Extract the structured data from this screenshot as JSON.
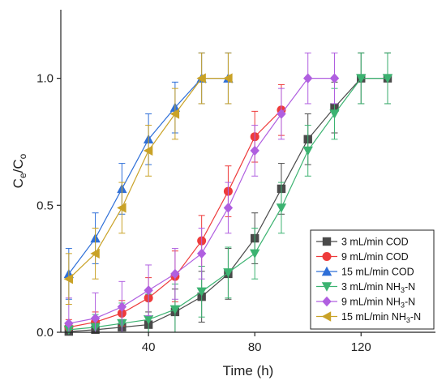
{
  "chart_data": {
    "type": "line",
    "title": "",
    "xlabel": "Time (h)",
    "ylabel": {
      "main": "C",
      "sub1": "e",
      "slash": "/C",
      "sub2": "o"
    },
    "xlim": [
      7,
      148
    ],
    "ylim": [
      0,
      1.27
    ],
    "xticks": [
      40,
      80,
      120
    ],
    "xtick_labels": [
      "40",
      "80",
      "120"
    ],
    "yticks": [
      0,
      0.5,
      1.0
    ],
    "ytick_labels": [
      "0.0",
      "0.5",
      "1.0"
    ],
    "grid": false,
    "legend_position": "bottom-right",
    "series": [
      {
        "name": {
          "text": "3 mL/min COD",
          "sub": "",
          "suffix": ""
        },
        "color": "#4a4a4a",
        "marker": "square",
        "x": [
          10,
          20,
          30,
          40,
          50,
          60,
          70,
          80,
          90,
          100,
          110,
          120,
          130
        ],
        "y": [
          0.003,
          0.01,
          0.02,
          0.03,
          0.08,
          0.14,
          0.23,
          0.37,
          0.565,
          0.76,
          0.885,
          1.0,
          1.0
        ],
        "err": [
          0.02,
          0.02,
          0.03,
          0.05,
          0.09,
          0.1,
          0.1,
          0.1,
          0.1,
          0.1,
          0.1,
          0.1,
          0.1
        ]
      },
      {
        "name": {
          "text": "9 mL/min COD",
          "sub": "",
          "suffix": ""
        },
        "color": "#ee3b3b",
        "marker": "circle",
        "x": [
          10,
          20,
          30,
          40,
          50,
          60,
          70,
          80,
          90
        ],
        "y": [
          0.02,
          0.04,
          0.075,
          0.135,
          0.22,
          0.36,
          0.555,
          0.77,
          0.875
        ],
        "err": [
          0.03,
          0.04,
          0.05,
          0.08,
          0.1,
          0.1,
          0.1,
          0.1,
          0.1
        ]
      },
      {
        "name": {
          "text": "15 mL/min COD",
          "sub": "",
          "suffix": ""
        },
        "color": "#2e6fd8",
        "marker": "triangle-up",
        "x": [
          10,
          20,
          30,
          40,
          50,
          60,
          70
        ],
        "y": [
          0.23,
          0.37,
          0.565,
          0.76,
          0.885,
          1.0,
          1.0
        ],
        "err": [
          0.1,
          0.1,
          0.1,
          0.1,
          0.1,
          0.1,
          0.1
        ]
      },
      {
        "name": {
          "text": "3 mL/min NH",
          "sub": "3",
          "suffix": "-N"
        },
        "color": "#3cb371",
        "marker": "triangle-down",
        "x": [
          10,
          20,
          30,
          40,
          50,
          60,
          70,
          80,
          90,
          100,
          110,
          120,
          130
        ],
        "y": [
          0.01,
          0.02,
          0.035,
          0.05,
          0.09,
          0.16,
          0.235,
          0.31,
          0.49,
          0.715,
          0.86,
          1.0,
          1.0
        ],
        "err": [
          0.03,
          0.05,
          0.08,
          0.1,
          0.1,
          0.1,
          0.1,
          0.1,
          0.1,
          0.1,
          0.1,
          0.1,
          0.1
        ]
      },
      {
        "name": {
          "text": "9 mL/min NH",
          "sub": "3",
          "suffix": "-N"
        },
        "color": "#b05fe0",
        "marker": "diamond",
        "x": [
          10,
          20,
          30,
          40,
          50,
          60,
          70,
          80,
          90,
          100,
          110
        ],
        "y": [
          0.035,
          0.055,
          0.1,
          0.165,
          0.23,
          0.31,
          0.49,
          0.715,
          0.86,
          1.0,
          1.0
        ],
        "err": [
          0.1,
          0.1,
          0.1,
          0.1,
          0.1,
          0.1,
          0.1,
          0.1,
          0.1,
          0.1,
          0.1
        ]
      },
      {
        "name": {
          "text": "15 mL/min NH",
          "sub": "3",
          "suffix": "-N"
        },
        "color": "#c9a227",
        "marker": "triangle-left",
        "x": [
          10,
          20,
          30,
          40,
          50,
          60,
          70
        ],
        "y": [
          0.21,
          0.31,
          0.49,
          0.715,
          0.86,
          1.0,
          1.0
        ],
        "err": [
          0.1,
          0.1,
          0.1,
          0.1,
          0.1,
          0.1,
          0.1
        ]
      }
    ]
  }
}
